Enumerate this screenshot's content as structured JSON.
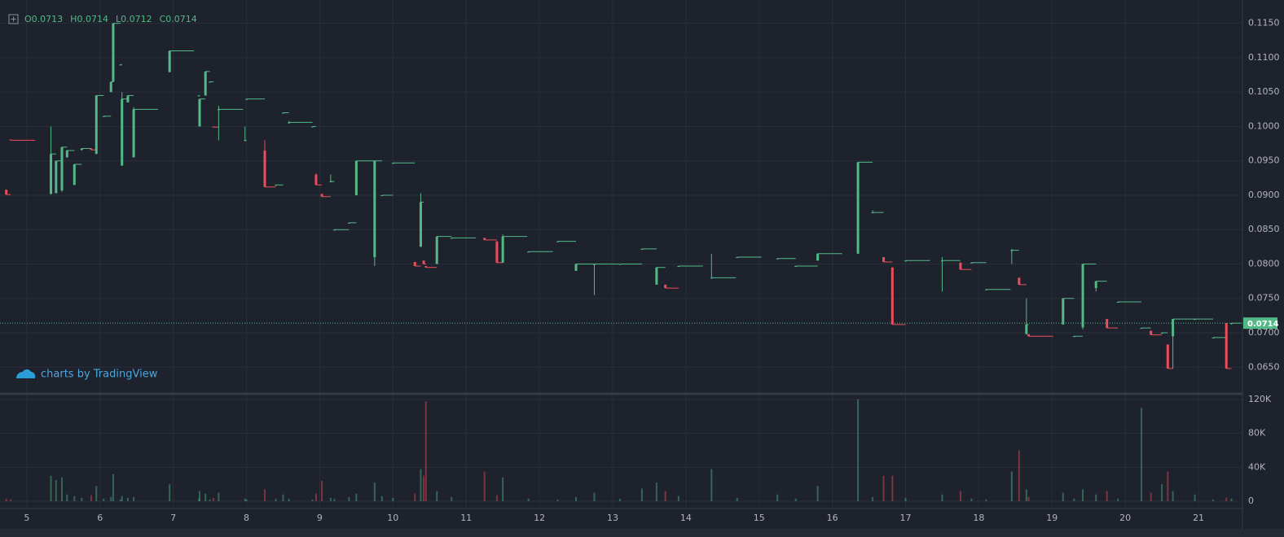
{
  "chart_data": {
    "type": "candlestick",
    "legend": [
      {
        "label": "O",
        "value": 0.0713
      },
      {
        "label": "H",
        "value": 0.0714
      },
      {
        "label": "L",
        "value": 0.0712
      },
      {
        "label": "C",
        "value": 0.0714
      }
    ],
    "watermark": "charts by TradingView",
    "last_price": 0.0714,
    "up_color": "#53b987",
    "down_color": "#eb4d5c",
    "xlim": [
      4.69,
      21.6
    ],
    "xticks": [
      5,
      6,
      7,
      8,
      9,
      10,
      11,
      12,
      13,
      14,
      15,
      16,
      17,
      18,
      19,
      20,
      21
    ],
    "ylim": [
      0.0616,
      0.1178
    ],
    "yticks": [
      {
        "value": 0.065,
        "label": "0.0650"
      },
      {
        "value": 0.07,
        "label": "0.0700"
      },
      {
        "value": 0.075,
        "label": "0.0750"
      },
      {
        "value": 0.08,
        "label": "0.0800"
      },
      {
        "value": 0.085,
        "label": "0.0850"
      },
      {
        "value": 0.09,
        "label": "0.0900"
      },
      {
        "value": 0.095,
        "label": "0.0950"
      },
      {
        "value": 0.1,
        "label": "0.1000"
      },
      {
        "value": 0.105,
        "label": "0.1050"
      },
      {
        "value": 0.11,
        "label": "0.1100"
      },
      {
        "value": 0.115,
        "label": "0.1150"
      }
    ],
    "volume_ylim": [
      -8640,
      122880
    ],
    "volume_yticks": [
      0,
      {
        "value": 40000,
        "label": "40K"
      },
      {
        "value": 80000,
        "label": "80K"
      },
      {
        "value": 120000,
        "label": "120K"
      }
    ],
    "x": [
      4.72,
      4.78,
      5.33,
      5.4,
      5.48,
      5.55,
      5.65,
      5.75,
      5.88,
      5.95,
      6.05,
      6.15,
      6.18,
      6.28,
      6.3,
      6.38,
      6.46,
      6.95,
      7.35,
      7.36,
      7.44,
      7.5,
      7.55,
      7.62,
      7.98,
      8.0,
      8.25,
      8.4,
      8.5,
      8.58,
      8.9,
      8.95,
      9.03,
      9.15,
      9.2,
      9.4,
      9.5,
      9.75,
      9.85,
      10.0,
      10.3,
      10.38,
      10.42,
      10.45,
      10.6,
      10.8,
      11.25,
      11.42,
      11.5,
      11.85,
      12.25,
      12.5,
      12.75,
      13.1,
      13.4,
      13.6,
      13.72,
      13.9,
      14.35,
      14.7,
      15.25,
      15.5,
      15.8,
      16.35,
      16.55,
      16.7,
      16.82,
      17.0,
      17.5,
      17.75,
      17.9,
      18.1,
      18.45,
      18.55,
      18.65,
      18.68,
      19.15,
      19.3,
      19.42,
      19.6,
      19.75,
      19.9,
      20.22,
      20.35,
      20.5,
      20.58,
      20.65,
      20.95,
      21.2,
      21.38,
      21.45
    ],
    "open": [
      0.0908,
      0.0981,
      0.0902,
      0.0903,
      0.0907,
      0.0955,
      0.0915,
      0.0966,
      0.0968,
      0.096,
      0.1015,
      0.105,
      0.1065,
      0.109,
      0.0943,
      0.1035,
      0.0955,
      0.1079,
      0.1045,
      0.1,
      0.1045,
      0.1065,
      0.1,
      0.1025,
      0.098,
      0.104,
      0.0965,
      0.0915,
      0.102,
      0.1005,
      0.1,
      0.093,
      0.0902,
      0.092,
      0.085,
      0.086,
      0.09,
      0.081,
      0.09,
      0.0947,
      0.0803,
      0.0825,
      0.0805,
      0.0797,
      0.08,
      0.0838,
      0.0838,
      0.0833,
      0.0802,
      0.0818,
      0.0833,
      0.079,
      0.08,
      0.08,
      0.0822,
      0.077,
      0.077,
      0.0797,
      0.078,
      0.081,
      0.0808,
      0.0797,
      0.0805,
      0.0815,
      0.0875,
      0.081,
      0.0795,
      0.0805,
      0.0805,
      0.0802,
      0.0802,
      0.0763,
      0.082,
      0.078,
      0.0698,
      0.0698,
      0.0712,
      0.0695,
      0.0708,
      0.0765,
      0.072,
      0.0745,
      0.0707,
      0.0703,
      0.07,
      0.0683,
      0.0695,
      0.072,
      0.0693,
      0.0714,
      0.0713
    ],
    "high": [
      0.0908,
      0.0981,
      0.1,
      0.095,
      0.097,
      0.0966,
      0.0945,
      0.0968,
      0.0968,
      0.1045,
      0.1015,
      0.1065,
      0.115,
      0.109,
      0.105,
      0.1045,
      0.1028,
      0.111,
      0.1045,
      0.104,
      0.108,
      0.1065,
      0.1,
      0.103,
      0.1,
      0.104,
      0.098,
      0.0915,
      0.102,
      0.1008,
      0.1,
      0.0932,
      0.0902,
      0.093,
      0.085,
      0.086,
      0.095,
      0.095,
      0.09,
      0.0947,
      0.0803,
      0.0903,
      0.0805,
      0.0797,
      0.084,
      0.0838,
      0.0838,
      0.0833,
      0.0843,
      0.0818,
      0.0833,
      0.08,
      0.08,
      0.08,
      0.0822,
      0.0795,
      0.077,
      0.0797,
      0.0815,
      0.081,
      0.0808,
      0.0797,
      0.0815,
      0.0948,
      0.0878,
      0.081,
      0.0795,
      0.0805,
      0.081,
      0.0802,
      0.0802,
      0.0763,
      0.0822,
      0.078,
      0.075,
      0.0698,
      0.075,
      0.0695,
      0.08,
      0.0775,
      0.072,
      0.0745,
      0.0707,
      0.0703,
      0.07,
      0.0683,
      0.072,
      0.072,
      0.0693,
      0.0714,
      0.0714
    ],
    "low": [
      0.0901,
      0.098,
      0.0901,
      0.0903,
      0.0905,
      0.0955,
      0.0915,
      0.0965,
      0.0966,
      0.096,
      0.1015,
      0.105,
      0.1065,
      0.109,
      0.0943,
      0.1035,
      0.0955,
      0.1079,
      0.1045,
      0.1,
      0.1045,
      0.1065,
      0.0999,
      0.098,
      0.098,
      0.104,
      0.0912,
      0.0915,
      0.102,
      0.1004,
      0.1,
      0.0915,
      0.0898,
      0.092,
      0.085,
      0.086,
      0.09,
      0.0797,
      0.09,
      0.0947,
      0.0797,
      0.0825,
      0.08,
      0.0795,
      0.08,
      0.0838,
      0.0835,
      0.0802,
      0.0802,
      0.0818,
      0.0833,
      0.079,
      0.0755,
      0.08,
      0.0822,
      0.077,
      0.0765,
      0.0797,
      0.078,
      0.081,
      0.0808,
      0.0797,
      0.0805,
      0.0815,
      0.0875,
      0.0803,
      0.0712,
      0.0805,
      0.076,
      0.0792,
      0.0802,
      0.0763,
      0.08,
      0.077,
      0.0698,
      0.0695,
      0.0712,
      0.0695,
      0.0705,
      0.076,
      0.0707,
      0.0745,
      0.0707,
      0.0697,
      0.07,
      0.0648,
      0.0648,
      0.072,
      0.0693,
      0.0648,
      0.0712
    ],
    "close": [
      0.0901,
      0.098,
      0.096,
      0.095,
      0.097,
      0.0965,
      0.0945,
      0.0968,
      0.0966,
      0.1045,
      0.1015,
      0.1065,
      0.115,
      0.109,
      0.104,
      0.1045,
      0.1025,
      0.111,
      0.1045,
      0.104,
      0.108,
      0.1065,
      0.0999,
      0.1025,
      0.098,
      0.104,
      0.0912,
      0.0915,
      0.102,
      0.1006,
      0.1,
      0.0915,
      0.0898,
      0.092,
      0.085,
      0.086,
      0.095,
      0.095,
      0.09,
      0.0947,
      0.0797,
      0.089,
      0.08,
      0.0795,
      0.084,
      0.0838,
      0.0835,
      0.0802,
      0.084,
      0.0818,
      0.0833,
      0.08,
      0.08,
      0.08,
      0.0822,
      0.0795,
      0.0765,
      0.0797,
      0.078,
      0.081,
      0.0808,
      0.0797,
      0.0815,
      0.0948,
      0.0875,
      0.0803,
      0.0712,
      0.0805,
      0.0805,
      0.0792,
      0.0802,
      0.0763,
      0.082,
      0.077,
      0.0712,
      0.0695,
      0.075,
      0.0695,
      0.08,
      0.0775,
      0.0707,
      0.0745,
      0.0707,
      0.0697,
      0.07,
      0.0648,
      0.072,
      0.072,
      0.0693,
      0.0648,
      0.0714
    ],
    "volume": [
      3000,
      2000,
      30000,
      25000,
      28000,
      8000,
      6000,
      4000,
      7000,
      18000,
      3000,
      5000,
      32000,
      2000,
      6000,
      4000,
      5000,
      20000,
      3000,
      12000,
      9000,
      2000,
      4000,
      10000,
      3000,
      2000,
      14000,
      3000,
      8000,
      3000,
      2000,
      9000,
      24000,
      4000,
      3000,
      5000,
      9000,
      22000,
      6000,
      4000,
      9000,
      38000,
      30000,
      118000,
      12000,
      5000,
      35000,
      7000,
      28000,
      3000,
      2000,
      5000,
      10000,
      3000,
      15000,
      22000,
      12000,
      6000,
      38000,
      4000,
      8000,
      3000,
      18000,
      120000,
      5000,
      30000,
      30000,
      4000,
      8000,
      12000,
      3000,
      2000,
      35000,
      60000,
      14000,
      5000,
      10000,
      3000,
      14000,
      8000,
      12000,
      3000,
      110000,
      10000,
      20000,
      35000,
      12000,
      8000,
      2000,
      4000,
      3000
    ]
  }
}
